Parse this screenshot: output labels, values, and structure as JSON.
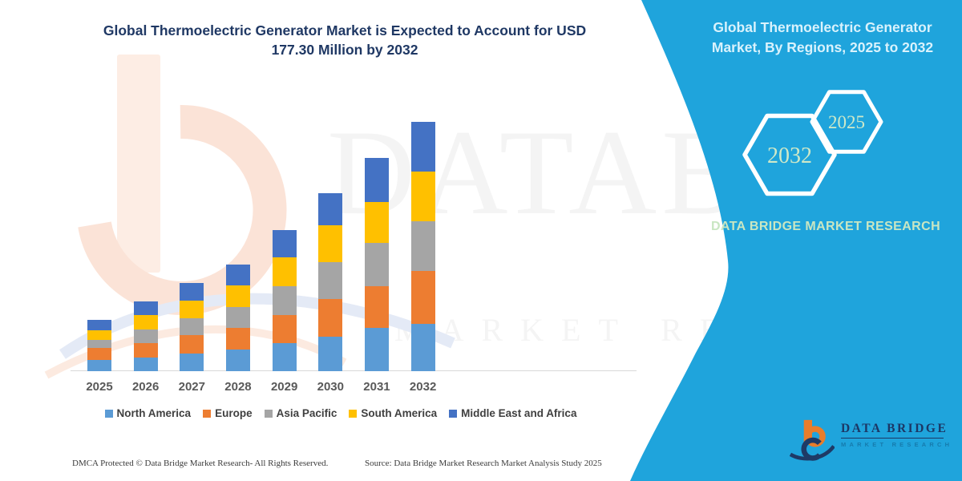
{
  "header": {
    "title_line1": "Global Thermoelectric Generator Market is Expected to Account for USD",
    "title_line2": "177.30 Million by 2032"
  },
  "watermark": {
    "big_text": "DATABRI",
    "row_text": "MARKET RESEARCH"
  },
  "chart_data": {
    "type": "bar",
    "stacked": true,
    "title": "Global Thermoelectric Generator Market is Expected to Account for USD 177.30 Million by 2032",
    "unit": "USD Million",
    "categories": [
      "2025",
      "2026",
      "2027",
      "2028",
      "2029",
      "2030",
      "2031",
      "2032"
    ],
    "series": [
      {
        "name": "North America",
        "color": "#5B9BD5",
        "values": [
          8.1,
          10.0,
          12.6,
          15.2,
          19.8,
          24.5,
          30.6,
          33.8
        ]
      },
      {
        "name": "Europe",
        "color": "#ED7D31",
        "values": [
          8.5,
          10.2,
          12.9,
          15.6,
          20.0,
          26.6,
          30.0,
          37.5
        ]
      },
      {
        "name": "Asia Pacific",
        "color": "#A5A5A5",
        "values": [
          5.6,
          9.6,
          12.2,
          14.9,
          20.5,
          26.6,
          30.4,
          35.3
        ]
      },
      {
        "name": "South America",
        "color": "#FFC000",
        "values": [
          7.0,
          10.0,
          12.6,
          15.2,
          20.9,
          26.2,
          29.6,
          35.4
        ]
      },
      {
        "name": "Middle East and Africa",
        "color": "#4472C4",
        "values": [
          7.2,
          9.8,
          12.4,
          14.9,
          19.4,
          22.8,
          31.0,
          35.3
        ]
      }
    ],
    "totals": [
      36.4,
      49.6,
      62.7,
      75.8,
      100.6,
      126.7,
      151.6,
      177.3
    ],
    "ylim": [
      0,
      190
    ],
    "y_axis_visible": false,
    "grid": false,
    "legend_position": "bottom"
  },
  "side_panel": {
    "title": "Global Thermoelectric Generator Market, By Regions, 2025 to 2032",
    "hexagons": [
      {
        "label": "2032"
      },
      {
        "label": "2025"
      }
    ],
    "brand_text": "DATA BRIDGE MARKET RESEARCH",
    "colors": {
      "background": "#1FA4DC",
      "title_text": "#D9F2FC",
      "hex_label": "#CFE9C8",
      "brand_text": "#C9E6C2"
    }
  },
  "footer": {
    "left": "DMCA Protected © Data Bridge Market Research-  All Rights Reserved.",
    "source": "Source: Data Bridge Market Research  Market Analysis Study 2025"
  },
  "logo": {
    "name": "DATA BRIDGE",
    "subtitle": "MARKET RESEARCH"
  }
}
